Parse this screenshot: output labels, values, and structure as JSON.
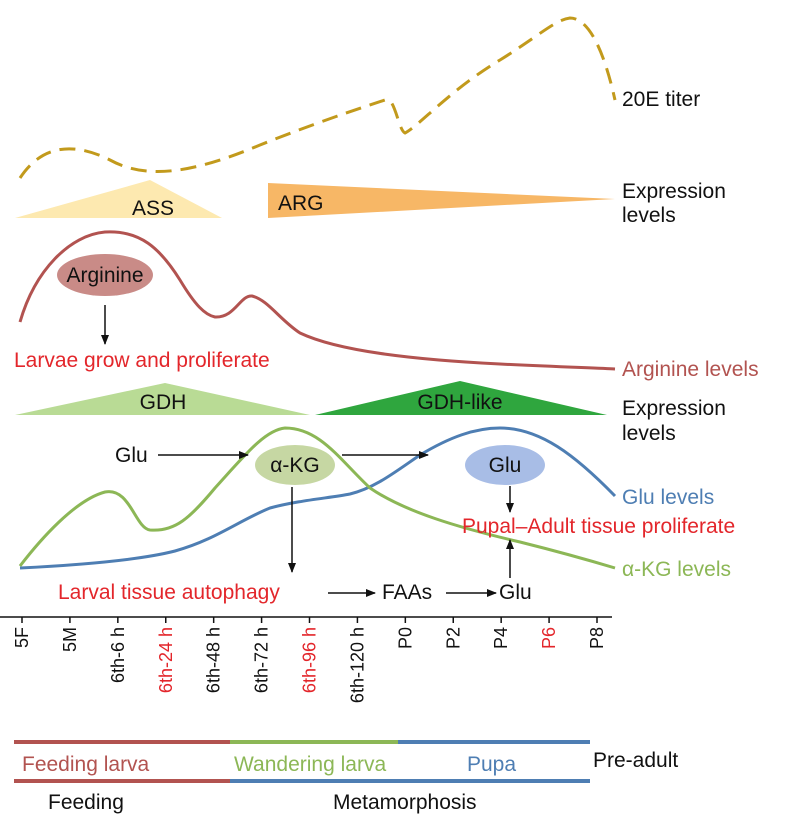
{
  "titer_label": "20E titer",
  "expression_label_1": "Expression\nlevels",
  "expression_label_2": "Expression\nlevels",
  "genes": {
    "ass": "ASS",
    "arg": "ARG",
    "gdh": "GDH",
    "gdh_like": "GDH-like"
  },
  "arginine": {
    "bubble": "Arginine",
    "effect": "Larvae grow and proliferate",
    "levels_label": "Arginine levels"
  },
  "flow": {
    "glu_left": "Glu",
    "akg_bubble": "α-KG",
    "glu_bubble": "Glu",
    "pupal_effect": "Pupal–Adult tissue proliferate",
    "autophagy": "Larval tissue autophagy",
    "faas": "FAAs",
    "glu_bottom": "Glu"
  },
  "series_labels": {
    "glu": "Glu levels",
    "akg": "α-KG levels"
  },
  "timepoints": [
    {
      "label": "5F",
      "highlight": false
    },
    {
      "label": "5M",
      "highlight": false
    },
    {
      "label": "6th-6 h",
      "highlight": false
    },
    {
      "label": "6th-24 h",
      "highlight": true
    },
    {
      "label": "6th-48 h",
      "highlight": false
    },
    {
      "label": "6th-72 h",
      "highlight": false
    },
    {
      "label": "6th-96 h",
      "highlight": true
    },
    {
      "label": "6th-120 h",
      "highlight": false
    },
    {
      "label": "P0",
      "highlight": false
    },
    {
      "label": "P2",
      "highlight": false
    },
    {
      "label": "P4",
      "highlight": false
    },
    {
      "label": "P6",
      "highlight": true
    },
    {
      "label": "P8",
      "highlight": false
    }
  ],
  "stages": {
    "feeding_larva": "Feeding larva",
    "wandering_larva": "Wandering larva",
    "pupa": "Pupa",
    "pre_adult": "Pre-adult",
    "feeding": "Feeding",
    "metamorphosis": "Metamorphosis"
  },
  "colors": {
    "titer": "#c29a1c",
    "ass_fill": "#fde9b0",
    "arg_fill": "#f7b766",
    "arginine": "#b25350",
    "arginine_bubble": "#c98b87",
    "gdh_fill": "#b9db95",
    "gdh_like_fill": "#2fa63e",
    "akg": "#8cb756",
    "akg_bubble": "#c6d7a3",
    "glu": "#4e7eb3",
    "glu_bubble": "#a8bde6",
    "red_text": "#e3262b",
    "feeding_bar": "#b25350",
    "wandering_bar": "#8cb756",
    "pupa_bar": "#4e7eb3"
  }
}
